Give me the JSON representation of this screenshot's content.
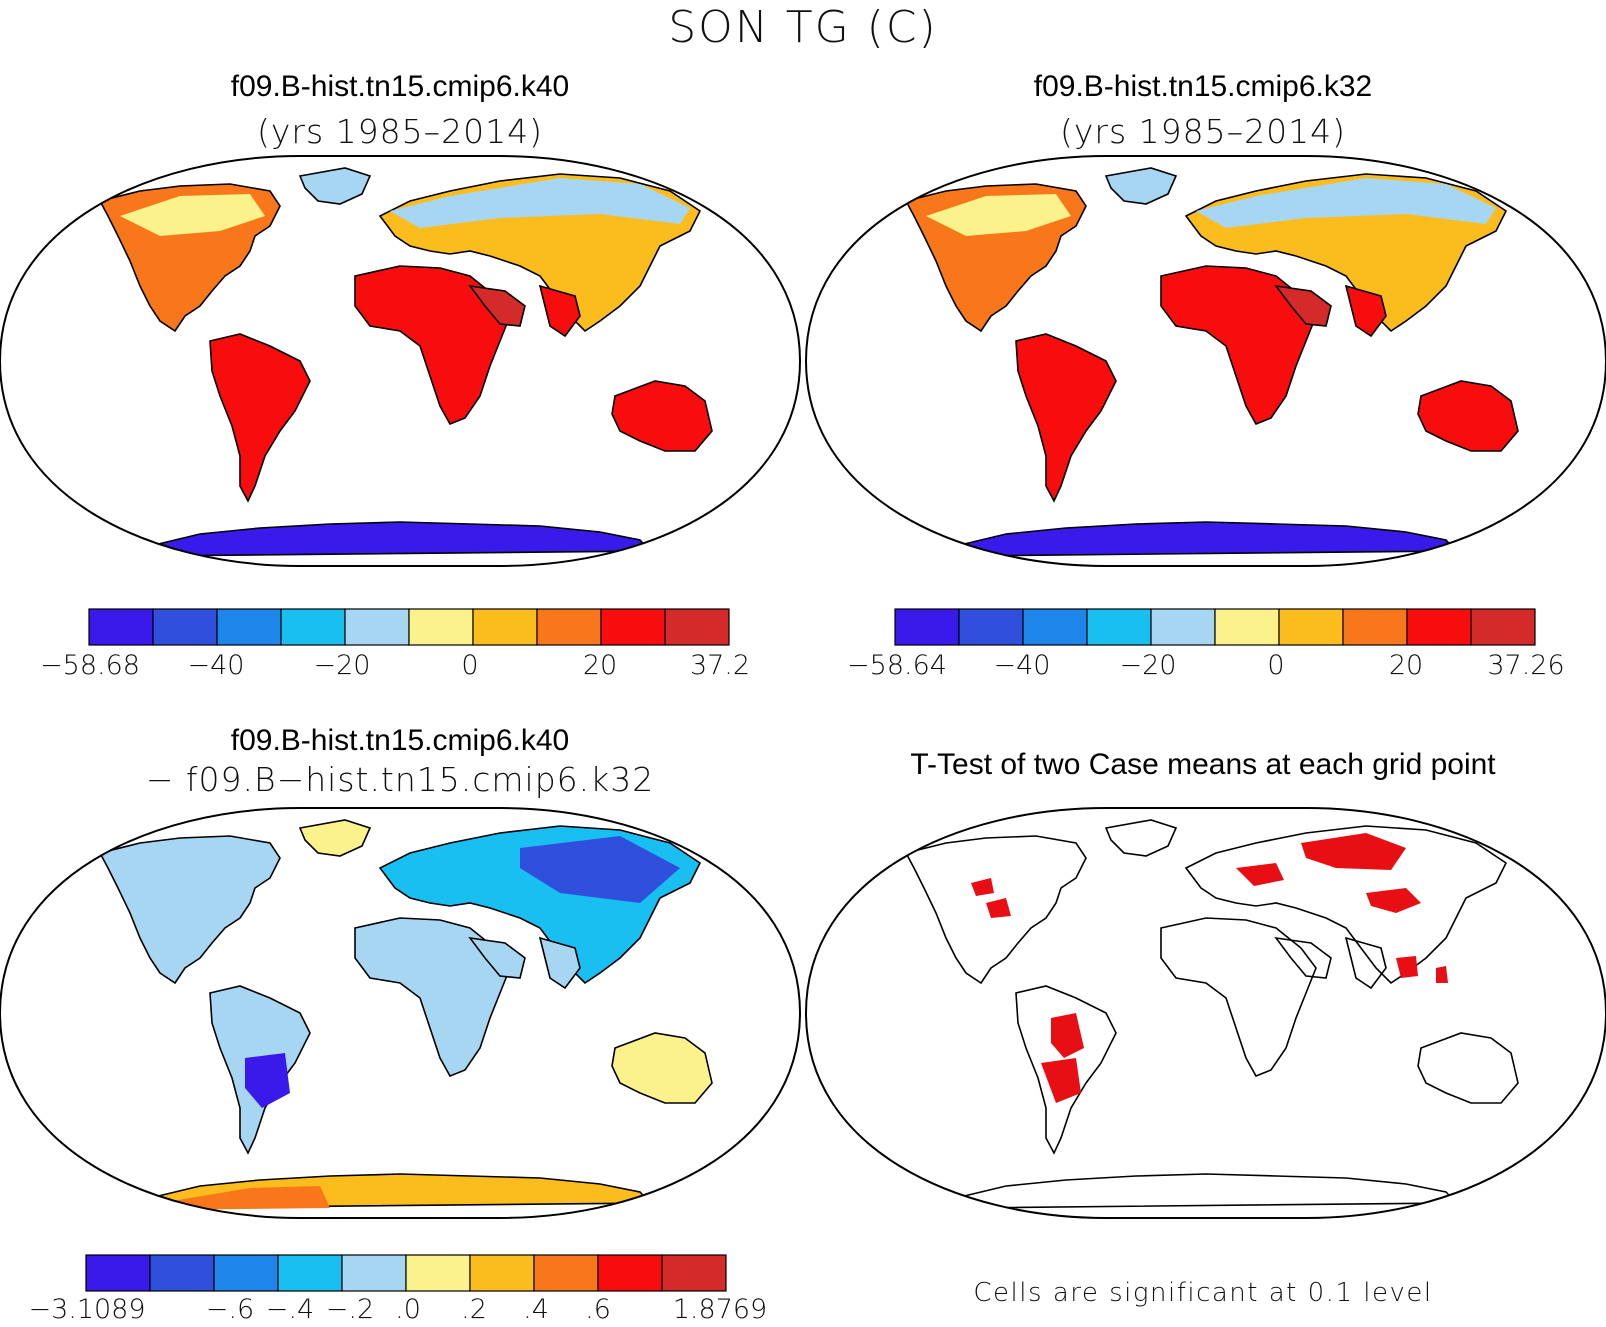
{
  "main_title": "SON TG (C)",
  "panels": [
    {
      "id": "k40",
      "title": "f09.B-hist.tn15.cmip6.k40",
      "subtitle": "(yrs 1985–2014)",
      "colorbar": {
        "labels": [
          "−58.68",
          "−40",
          "−20",
          "0",
          "20",
          "37.2"
        ]
      }
    },
    {
      "id": "k32",
      "title": "f09.B-hist.tn15.cmip6.k32",
      "subtitle": "(yrs 1985–2014)",
      "colorbar": {
        "labels": [
          "−58.64",
          "−40",
          "−20",
          "0",
          "20",
          "37.26"
        ]
      }
    },
    {
      "id": "diff",
      "title": "f09.B-hist.tn15.cmip6.k40",
      "subtitle": "− f09.B−hist.tn15.cmip6.k32",
      "colorbar": {
        "labels": [
          "−3.1089",
          "−.6",
          "−.4",
          "−.2",
          ".0",
          ".2",
          ".4",
          ".6",
          "1.8769"
        ]
      }
    },
    {
      "id": "ttest",
      "title": "T-Test of two Case means at each grid point",
      "note": "Cells are significant at 0.1 level"
    }
  ],
  "colorbar_colors": [
    "#3a1aeb",
    "#2f4fdc",
    "#1e85eb",
    "#18bff0",
    "#a6d6f2",
    "#fbf28c",
    "#fbbd1e",
    "#f9771b",
    "#f70d0d",
    "#d42a2a"
  ],
  "significance_color": "#e80f14"
}
